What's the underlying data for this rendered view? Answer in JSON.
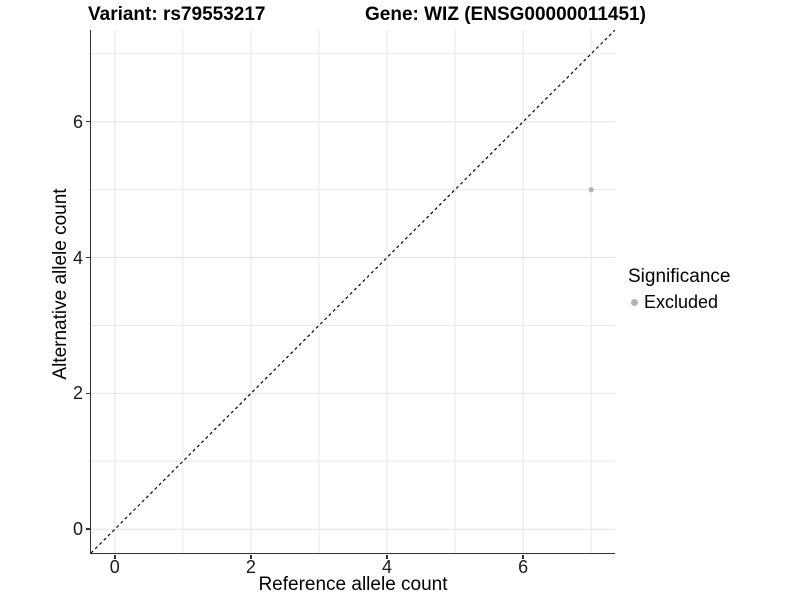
{
  "chart_data": {
    "type": "scatter",
    "title_left": "Variant: rs79553217",
    "title_right": "Gene: WIZ (ENSG00000011451)",
    "xlabel": "Reference allele count",
    "ylabel": "Alternative allele count",
    "x": {
      "range": [
        -0.35,
        7.35
      ],
      "major_ticks": [
        0,
        2,
        4,
        6
      ],
      "minor_gridlines": [
        1,
        3,
        5,
        7
      ]
    },
    "y": {
      "range": [
        -0.35,
        7.35
      ],
      "major_ticks": [
        0,
        2,
        4,
        6
      ],
      "minor_gridlines": [
        1,
        3,
        5,
        7
      ]
    },
    "grid": "on",
    "points": [
      {
        "x": 7,
        "y": 5,
        "series": "Excluded"
      }
    ],
    "reference_line": {
      "type": "identity",
      "slope": 1,
      "intercept": 0,
      "style": "dashed",
      "color": "#000000"
    },
    "legend": {
      "position": "right",
      "title": "Significance",
      "items": [
        {
          "label": "Excluded",
          "color": "#b3b3b3",
          "marker": "dot"
        }
      ]
    },
    "colors": {
      "point": "#b3b3b3",
      "grid_major": "#e4e4e4",
      "grid_minor": "#e9e9e9",
      "axis_line": "#333333",
      "tick_text": "#1a1a1a",
      "background": "#ffffff"
    }
  }
}
